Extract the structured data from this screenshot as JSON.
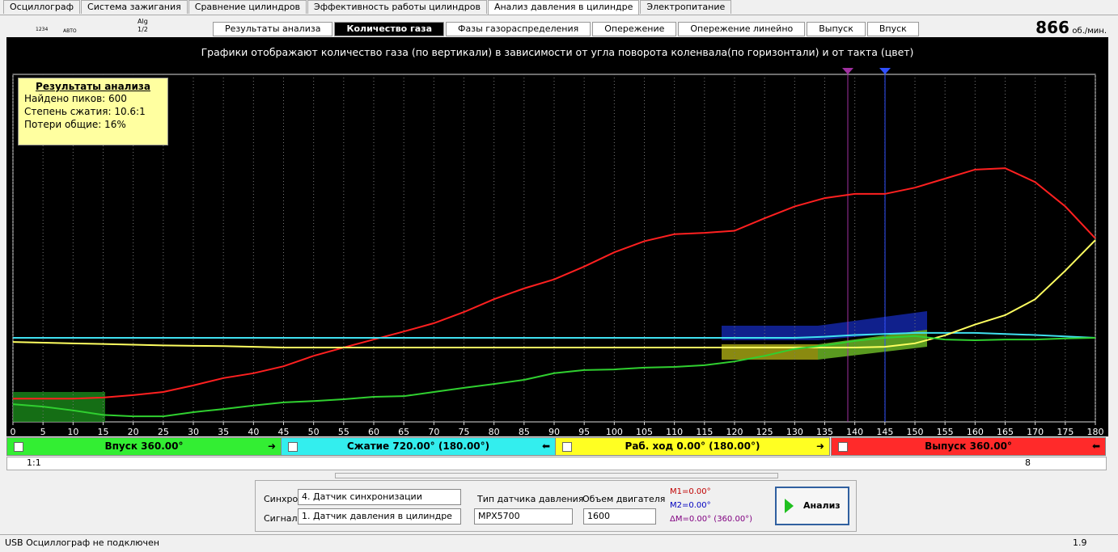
{
  "tabs": [
    "Осциллограф",
    "Система зажигания",
    "Сравнение цилиндров",
    "Эффективность работы цилиндров",
    "Анализ давления в цилиндре",
    "Электропитание"
  ],
  "active_tab": 4,
  "toolbar_labels": [
    "1234",
    "АВТО",
    "Alg",
    "1/2"
  ],
  "subtabs": [
    "Результаты анализа",
    "Количество газа",
    "Фазы газораспределения",
    "Опережение",
    "Опережение линейно",
    "Выпуск",
    "Впуск"
  ],
  "active_subtab": 1,
  "rpm": {
    "value": 866,
    "unit": "об./мин."
  },
  "chart_data": {
    "type": "line",
    "title": "Графики отображают количество газа (по вертикали) в зависимости от угла поворота коленвала(по горизонтали) и от такта (цвет)",
    "x": [
      0,
      5,
      10,
      15,
      20,
      25,
      30,
      35,
      40,
      45,
      50,
      55,
      60,
      65,
      70,
      75,
      80,
      85,
      90,
      95,
      100,
      105,
      110,
      115,
      120,
      125,
      130,
      135,
      140,
      145,
      150,
      155,
      160,
      165,
      170,
      175,
      180
    ],
    "xlim": [
      0,
      180
    ],
    "xticks": [
      0,
      5,
      10,
      15,
      20,
      25,
      30,
      35,
      40,
      45,
      50,
      55,
      60,
      65,
      70,
      75,
      80,
      85,
      90,
      95,
      100,
      105,
      110,
      115,
      120,
      125,
      130,
      135,
      140,
      145,
      150,
      155,
      160,
      165,
      170,
      175,
      180
    ],
    "ylim": [
      0,
      100
    ],
    "grid": true,
    "series": [
      {
        "color": "#ff2020",
        "values": [
          6.7,
          6.7,
          6.7,
          7,
          7.7,
          8.6,
          10.5,
          12.6,
          14,
          16,
          19,
          21.4,
          23.7,
          26,
          28.4,
          31.6,
          35.3,
          38.4,
          41,
          44.7,
          48.8,
          52,
          54,
          54.4,
          55,
          58.6,
          62,
          64.4,
          65.6,
          65.6,
          67.4,
          70,
          72.6,
          73,
          69,
          62,
          52.8
        ]
      },
      {
        "color": "#40e0f0",
        "values": [
          24.2,
          24.2,
          24.2,
          24.2,
          24.2,
          24.2,
          24.2,
          24.2,
          24.2,
          24.2,
          24.2,
          24.2,
          24.2,
          24.2,
          24.2,
          24.2,
          24.2,
          24.2,
          24.2,
          24.2,
          24.2,
          24.2,
          24.2,
          24.2,
          24.2,
          24.2,
          24.2,
          24.5,
          25,
          25.3,
          25.6,
          25.6,
          25.6,
          25.3,
          25,
          24.6,
          24.2
        ]
      },
      {
        "color": "#ffff60",
        "values": [
          23,
          22.8,
          22.6,
          22.4,
          22.2,
          22,
          21.9,
          21.8,
          21.6,
          21.4,
          21.4,
          21.4,
          21.4,
          21.4,
          21.4,
          21.4,
          21.4,
          21.4,
          21.4,
          21.4,
          21.4,
          21.4,
          21.4,
          21.4,
          21.4,
          21.4,
          21.4,
          21.4,
          21.4,
          21.6,
          22.6,
          24.9,
          28,
          30.7,
          35.3,
          43.5,
          52.3
        ]
      },
      {
        "color": "#30d030",
        "values": [
          5.1,
          4.4,
          3.3,
          2,
          1.6,
          1.6,
          2.8,
          3.7,
          4.7,
          5.6,
          6,
          6.5,
          7.2,
          7.4,
          8.6,
          9.8,
          10.9,
          12.1,
          14,
          14.9,
          15.1,
          15.6,
          15.8,
          16.3,
          17.4,
          19,
          21,
          22,
          23.3,
          24.2,
          24.7,
          23.7,
          23.5,
          23.7,
          23.7,
          24,
          24.2
        ]
      }
    ]
  },
  "info_box": {
    "title": "Результаты анализа",
    "lines": [
      "Найдено пиков: 600",
      "Степень сжатия: 10.6:1",
      "Потери общие: 16%"
    ]
  },
  "phases": [
    {
      "label": "Впуск 360.00°",
      "color": "#33ee33"
    },
    {
      "label": "Сжатие 720.00° (180.00°)",
      "color": "#33eeee"
    },
    {
      "label": "Раб. ход 0.00° (180.00°)",
      "color": "#ffff22"
    },
    {
      "label": "Выпуск 360.00°",
      "color": "#ff2a2a"
    }
  ],
  "zoom": "1:1",
  "page": 8,
  "controls": {
    "sync_label": "Синхро:",
    "sync_value": "4.  Датчик синхронизации",
    "signal_label": "Сигнал:",
    "signal_value": "1.  Датчик давления в цилиндре",
    "sensor_label": "Тип датчика давления",
    "sensor_value": "MPX5700",
    "volume_label": "Объем двигателя",
    "volume_value": "1600",
    "m1": "M1=0.00°",
    "m2": "M2=0.00°",
    "dm": "ΔM=0.00° (360.00°)",
    "analyze": "Анализ"
  },
  "status": {
    "left": "USB Осциллограф не подключен",
    "right": "1.9"
  }
}
